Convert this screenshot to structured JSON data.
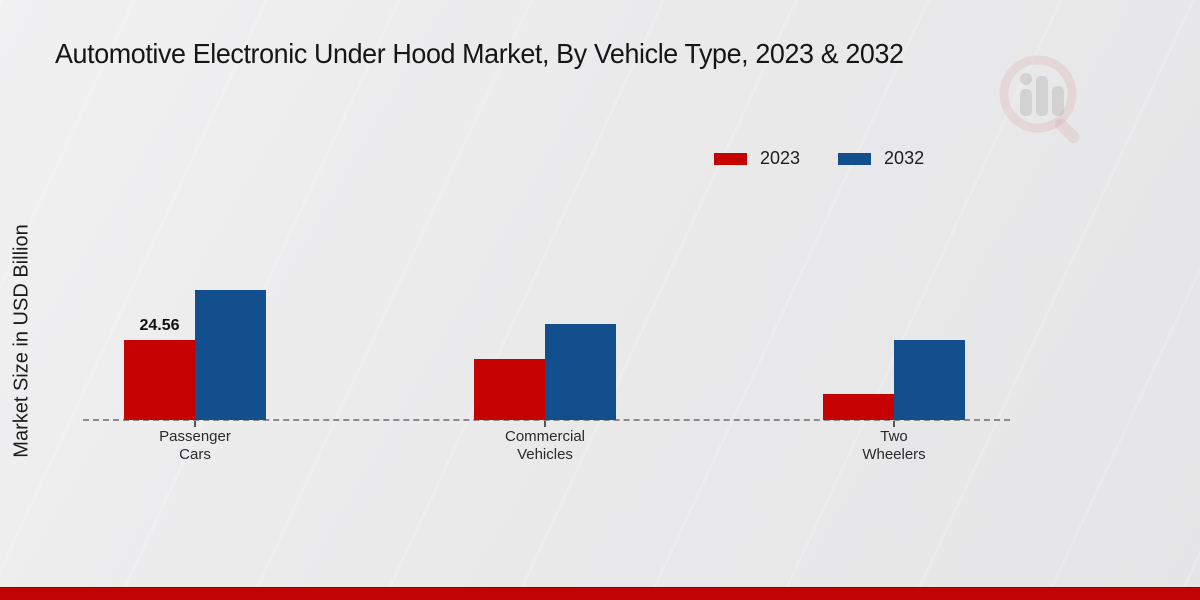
{
  "page": {
    "title": "Automotive Electronic Under Hood Market, By Vehicle Type, 2023 & 2032"
  },
  "chart_data": {
    "type": "bar",
    "title": "Automotive Electronic Under Hood Market, By Vehicle Type, 2023 & 2032",
    "xlabel": "",
    "ylabel": "Market Size in USD Billion",
    "categories": [
      "Passenger Cars",
      "Commercial Vehicles",
      "Two Wheelers"
    ],
    "series": [
      {
        "name": "2023",
        "color": "#c60303",
        "values": [
          24.56,
          18.7,
          7.9
        ]
      },
      {
        "name": "2032",
        "color": "#124f8c",
        "values": [
          39.9,
          29.5,
          24.6
        ]
      }
    ],
    "data_labels": [
      {
        "series": "2023",
        "category": "Passenger Cars",
        "text": "24.56"
      }
    ],
    "legend_position": "top-right",
    "baseline_style": "dashed",
    "grid": false,
    "ylim": [
      0,
      45
    ]
  },
  "watermark": {
    "name": "market-research-magnifier-logo"
  },
  "footer": {
    "bar_color": "#c00404"
  }
}
